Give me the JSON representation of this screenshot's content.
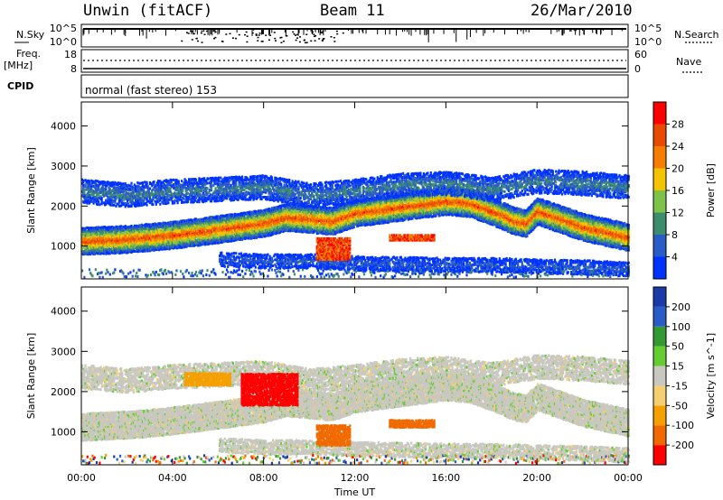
{
  "header": {
    "radar": "Unwin (fitACF)",
    "beam": "Beam 11",
    "date": "26/Mar/2010"
  },
  "side_labels": {
    "nsky": "N.Sky",
    "nsearch": "N.Search",
    "freq": "Freq.",
    "freq_unit": "[MHz]",
    "nave": "Nave",
    "cpid": "CPID"
  },
  "noise_panel": {
    "left_ticks": [
      "10^5",
      "10^0"
    ],
    "right_ticks": [
      "10^5",
      "10^0"
    ]
  },
  "freq_panel": {
    "left_ticks": [
      "18",
      "8"
    ],
    "right_ticks": [
      "60",
      "0"
    ]
  },
  "cpid_text": "normal (fast stereo) 153",
  "colors": {
    "power_scale": [
      "#0033ff",
      "#2a5cc8",
      "#3c8c6e",
      "#7fc24a",
      "#f5c400",
      "#f57d00",
      "#e84a00",
      "#ff0000"
    ],
    "velocity_scale": [
      "#ff0000",
      "#f06a00",
      "#f5a000",
      "#f5d070",
      "#c8c8c0",
      "#66cc33",
      "#339933",
      "#2a5cc8",
      "#1a3aa8"
    ]
  },
  "chart_data": [
    {
      "type": "heatmap",
      "ylabel": "Slant Range [km]",
      "yticks": [
        "1000",
        "2000",
        "3000",
        "4000"
      ],
      "ylim": [
        180,
        4600
      ],
      "xlim": [
        "00:00",
        "24:00"
      ],
      "colorbar": {
        "label": "Power [dB]",
        "ticks": [
          "4",
          "8",
          "12",
          "16",
          "20",
          "24",
          "28"
        ],
        "range": [
          0,
          32
        ]
      },
      "bands": [
        {
          "name": "main",
          "points": [
            [
              0,
              1150
            ],
            [
              2,
              1200
            ],
            [
              4,
              1300
            ],
            [
              6,
              1450
            ],
            [
              8,
              1600
            ],
            [
              9,
              1750
            ],
            [
              10,
              1700
            ],
            [
              11,
              1650
            ],
            [
              12,
              1850
            ],
            [
              14,
              2000
            ],
            [
              16,
              2150
            ],
            [
              17,
              2100
            ],
            [
              18,
              1900
            ],
            [
              19,
              1650
            ],
            [
              19.5,
              1600
            ],
            [
              20,
              1900
            ],
            [
              22,
              1500
            ],
            [
              24,
              1250
            ]
          ],
          "width": 320,
          "core": 26
        },
        {
          "name": "far",
          "points": [
            [
              0,
              2400
            ],
            [
              2,
              2300
            ],
            [
              4,
              2400
            ],
            [
              6,
              2450
            ],
            [
              8,
              2500
            ],
            [
              10,
              2300
            ],
            [
              12,
              2400
            ],
            [
              14,
              2550
            ],
            [
              16,
              2600
            ],
            [
              18,
              2450
            ],
            [
              20,
              2650
            ],
            [
              22,
              2600
            ],
            [
              24,
              2500
            ]
          ],
          "width": 260,
          "core": 9
        },
        {
          "name": "near",
          "points": [
            [
              6,
              700
            ],
            [
              8,
              650
            ],
            [
              10,
              650
            ],
            [
              12,
              600
            ],
            [
              14,
              580
            ],
            [
              16,
              560
            ],
            [
              18,
              560
            ],
            [
              20,
              520
            ],
            [
              22,
              500
            ],
            [
              24,
              450
            ]
          ],
          "width": 160,
          "core": 6
        }
      ]
    },
    {
      "type": "heatmap",
      "ylabel": "Slant Range [km]",
      "xlabel": "Time UT",
      "yticks": [
        "1000",
        "2000",
        "3000",
        "4000"
      ],
      "ylim": [
        180,
        4600
      ],
      "xticks": [
        "00:00",
        "04:00",
        "08:00",
        "12:00",
        "16:00",
        "20:00",
        "00:00"
      ],
      "colorbar": {
        "label": "Velocity [m s^-1]",
        "ticks": [
          "-200",
          "-100",
          "-50",
          "-15",
          "15",
          "50",
          "100",
          "200"
        ],
        "range": [
          -250,
          250
        ]
      },
      "regions": [
        {
          "x": [
            7,
            9.5
          ],
          "y": [
            1700,
            2500
          ],
          "velocity": -200
        },
        {
          "x": [
            10.3,
            11.8
          ],
          "y": [
            700,
            1200
          ],
          "velocity": -60
        },
        {
          "x": [
            13.5,
            15.5
          ],
          "y": [
            1150,
            1350
          ],
          "velocity": -60
        },
        {
          "x": [
            4.5,
            6.5
          ],
          "y": [
            2200,
            2500
          ],
          "velocity": -50
        }
      ]
    }
  ]
}
